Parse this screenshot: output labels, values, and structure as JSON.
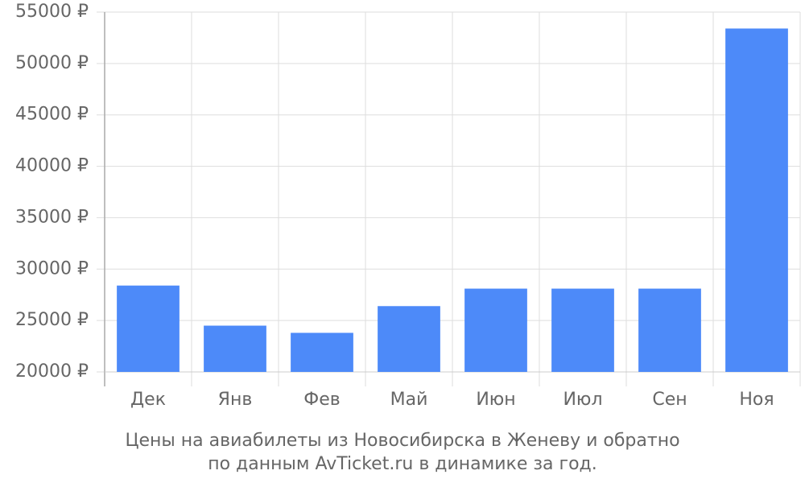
{
  "chart_data": {
    "type": "bar",
    "categories": [
      "Дек",
      "Янв",
      "Фев",
      "Май",
      "Июн",
      "Июл",
      "Сен",
      "Ноя"
    ],
    "values": [
      28400,
      24500,
      23800,
      26400,
      28100,
      28100,
      28100,
      53400
    ],
    "color": "#4d8af9",
    "ylim": [
      20000,
      55000
    ],
    "yticks": [
      {
        "value": 20000,
        "label": "20000 ₽"
      },
      {
        "value": 25000,
        "label": "25000 ₽"
      },
      {
        "value": 30000,
        "label": "30000 ₽"
      },
      {
        "value": 35000,
        "label": "35000 ₽"
      },
      {
        "value": 40000,
        "label": "40000 ₽"
      },
      {
        "value": 45000,
        "label": "45000 ₽"
      },
      {
        "value": 50000,
        "label": "50000 ₽"
      },
      {
        "value": 55000,
        "label": "55000 ₽"
      }
    ],
    "grid": true,
    "caption": [
      "Цены на авиабилеты из Новосибирска в Женеву и обратно",
      "по данным AvTicket.ru в динамике за год."
    ]
  }
}
